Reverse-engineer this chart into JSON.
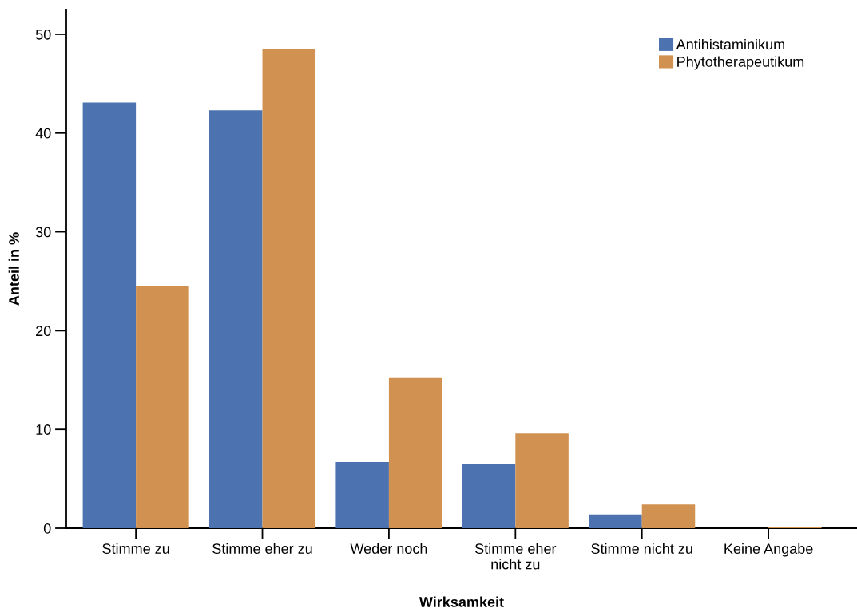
{
  "chart_data": {
    "type": "bar",
    "xlabel": "Wirksamkeit",
    "ylabel": "Anteil in %",
    "categories": [
      "Stimme zu",
      "Stimme eher zu",
      "Weder noch",
      "Stimme eher\nnicht zu",
      "Stimme nicht zu",
      "Keine Angabe"
    ],
    "series": [
      {
        "name": "Antihistaminikum",
        "color": "#4c72b0",
        "values": [
          43.1,
          42.3,
          6.7,
          6.5,
          1.4,
          0
        ]
      },
      {
        "name": "Phytotherapeutikum",
        "color": "#d19150",
        "values": [
          24.5,
          48.5,
          15.2,
          9.6,
          2.4,
          0.1
        ]
      }
    ],
    "ylim": [
      0,
      52.5
    ],
    "yticks": [
      0,
      10,
      20,
      30,
      40,
      50
    ],
    "grid": false,
    "legend": "top right"
  }
}
